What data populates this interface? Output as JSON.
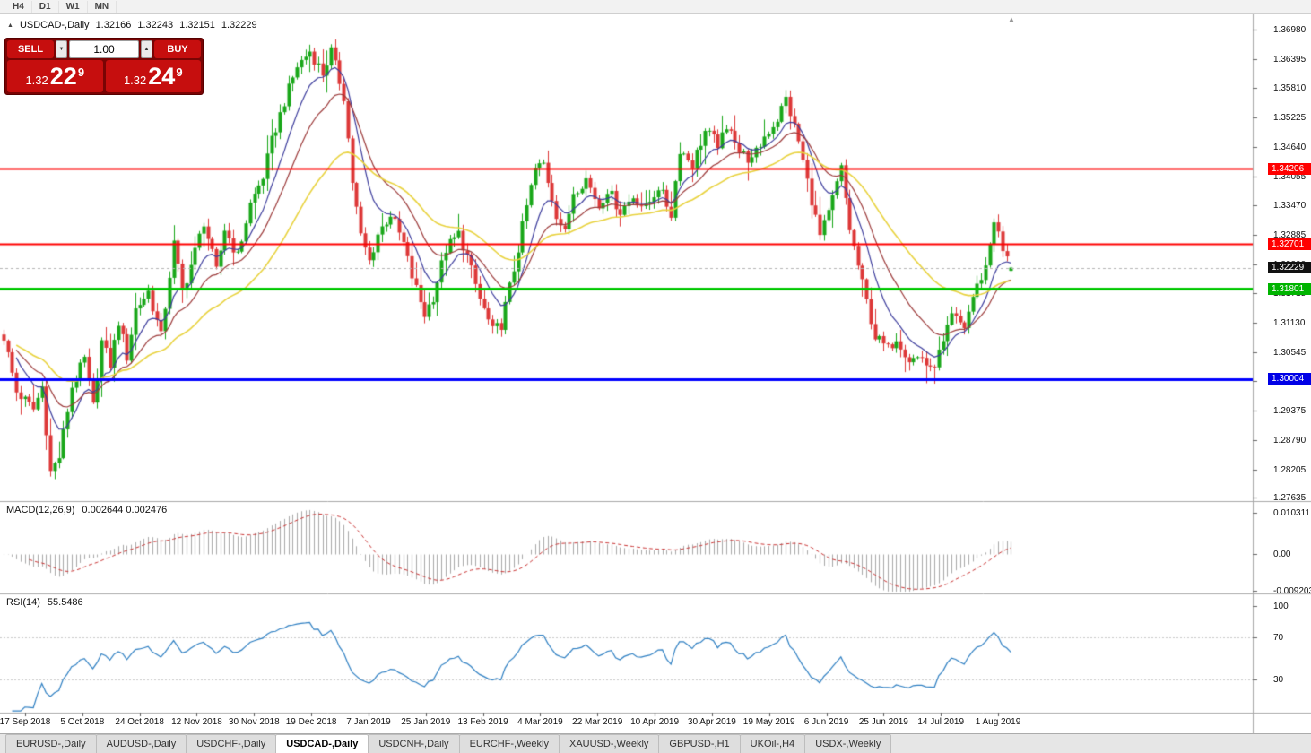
{
  "icons": {
    "triangle_up": "▲",
    "triangle_down": "▼"
  },
  "toolbar": {
    "timeframes": [
      "H4",
      "D1",
      "W1",
      "MN"
    ]
  },
  "chart": {
    "title": "USDCAD-,Daily",
    "open": "1.32166",
    "high": "1.32243",
    "low": "1.32151",
    "close": "1.32229"
  },
  "trade_panel": {
    "sell_label": "SELL",
    "buy_label": "BUY",
    "volume": "1.00",
    "sell_price": {
      "prefix": "1.32",
      "big": "22",
      "sup": "9"
    },
    "buy_price": {
      "prefix": "1.32",
      "big": "24",
      "sup": "9"
    }
  },
  "indicators": {
    "macd": {
      "name_params": "MACD(12,26,9)",
      "values_text": "0.002644 0.002476",
      "axis_labels": [
        "0.010311",
        "0.00",
        "-0.009203"
      ]
    },
    "rsi": {
      "name_params": "RSI(14)",
      "value_text": "55.5486",
      "axis_labels": [
        "100",
        "70",
        "30"
      ],
      "levels": [
        70,
        30
      ]
    }
  },
  "tabs": [
    {
      "label": "EURUSD-,Daily",
      "active": false
    },
    {
      "label": "AUDUSD-,Daily",
      "active": false
    },
    {
      "label": "USDCHF-,Daily",
      "active": false
    },
    {
      "label": "USDCAD-,Daily",
      "active": true
    },
    {
      "label": "USDCNH-,Daily",
      "active": false
    },
    {
      "label": "EURCHF-,Weekly",
      "active": false
    },
    {
      "label": "XAUUSD-,Weekly",
      "active": false
    },
    {
      "label": "GBPUSD-,H1",
      "active": false
    },
    {
      "label": "UKOil-,H4",
      "active": false
    },
    {
      "label": "USDX-,Weekly",
      "active": false
    }
  ],
  "chart_data": {
    "type": "candlestick",
    "symbol": "USDCAD",
    "timeframe": "Daily",
    "last_candle": {
      "open": 1.32166,
      "high": 1.32243,
      "low": 1.32151,
      "close": 1.32229
    },
    "up_color": "#19a719",
    "down_color": "#dd3838",
    "price_axis_ticks": [
      "1.36980",
      "1.36395",
      "1.35810",
      "1.35225",
      "1.34640",
      "1.34055",
      "1.33470",
      "1.32885",
      "1.32300",
      "1.31715",
      "1.31130",
      "1.30545",
      "1.29960",
      "1.29375",
      "1.28790",
      "1.28205",
      "1.27635"
    ],
    "x_axis_dates": [
      "17 Sep 2018",
      "5 Oct 2018",
      "24 Oct 2018",
      "12 Nov 2018",
      "30 Nov 2018",
      "19 Dec 2018",
      "7 Jan 2019",
      "25 Jan 2019",
      "13 Feb 2019",
      "4 Mar 2019",
      "22 Mar 2019",
      "10 Apr 2019",
      "30 Apr 2019",
      "19 May 2019",
      "6 Jun 2019",
      "25 Jun 2019",
      "14 Jul 2019",
      "1 Aug 2019"
    ],
    "horizontal_levels": [
      {
        "price": 1.34206,
        "label": "1.34206",
        "line_color": "#ff0000",
        "badge_color": "#ff0000",
        "width": 2,
        "style": "solid"
      },
      {
        "price": 1.32701,
        "label": "1.32701",
        "line_color": "#ff0000",
        "badge_color": "#ff0000",
        "width": 2,
        "style": "solid"
      },
      {
        "price": 1.32229,
        "label": "1.32229",
        "line_color": "#b4b4b4",
        "badge_color": "#111111",
        "width": 1,
        "style": "dashed"
      },
      {
        "price": 1.31801,
        "label": "1.31801",
        "line_color": "#00c800",
        "badge_color": "#00b400",
        "width": 3,
        "style": "solid"
      },
      {
        "price": 1.30004,
        "label": "1.30004",
        "line_color": "#0000ff",
        "badge_color": "#0000e6",
        "width": 3,
        "style": "solid"
      }
    ],
    "moving_averages": [
      {
        "period": 9,
        "color": "#3c3c9c"
      },
      {
        "period": 18,
        "color": "#9c3a3a"
      },
      {
        "period": 40,
        "color": "#e8d23e"
      }
    ],
    "macd": {
      "fast": 12,
      "slow": 26,
      "signal": 9,
      "current_values": [
        0.002644,
        0.002476
      ],
      "histogram_color": "#a9a9a9",
      "signal_color": "#c83232",
      "axis_range": [
        0.010311,
        -0.009203
      ]
    },
    "rsi": {
      "period": 14,
      "current_value": 55.5486,
      "line_color": "#2e7fc2",
      "axis_range": [
        0,
        100
      ],
      "levels": [
        70,
        30
      ]
    },
    "candle_count": 238,
    "close_path_anchors": [
      [
        0,
        1.3085
      ],
      [
        3,
        1.2975
      ],
      [
        7,
        1.294
      ],
      [
        9,
        1.2985
      ],
      [
        11,
        1.2815
      ],
      [
        13,
        1.2845
      ],
      [
        16,
        1.2985
      ],
      [
        19,
        1.304
      ],
      [
        21,
        1.2945
      ],
      [
        23,
        1.3075
      ],
      [
        25,
        1.303
      ],
      [
        27,
        1.3115
      ],
      [
        29,
        1.3045
      ],
      [
        31,
        1.314
      ],
      [
        34,
        1.3175
      ],
      [
        37,
        1.3085
      ],
      [
        40,
        1.327
      ],
      [
        42,
        1.3175
      ],
      [
        45,
        1.3255
      ],
      [
        47,
        1.3315
      ],
      [
        50,
        1.3215
      ],
      [
        52,
        1.33
      ],
      [
        55,
        1.3245
      ],
      [
        58,
        1.335
      ],
      [
        61,
        1.3405
      ],
      [
        63,
        1.3475
      ],
      [
        66,
        1.3555
      ],
      [
        69,
        1.3625
      ],
      [
        72,
        1.3655
      ],
      [
        75,
        1.361
      ],
      [
        77,
        1.3655
      ],
      [
        80,
        1.3565
      ],
      [
        82,
        1.3395
      ],
      [
        84,
        1.3285
      ],
      [
        86,
        1.3235
      ],
      [
        88,
        1.329
      ],
      [
        91,
        1.333
      ],
      [
        94,
        1.327
      ],
      [
        96,
        1.3205
      ],
      [
        99,
        1.313
      ],
      [
        101,
        1.3165
      ],
      [
        104,
        1.326
      ],
      [
        107,
        1.329
      ],
      [
        109,
        1.3245
      ],
      [
        112,
        1.316
      ],
      [
        115,
        1.3095
      ],
      [
        117,
        1.311
      ],
      [
        120,
        1.322
      ],
      [
        123,
        1.3345
      ],
      [
        125,
        1.342
      ],
      [
        127,
        1.343
      ],
      [
        130,
        1.333
      ],
      [
        132,
        1.329
      ],
      [
        134,
        1.3375
      ],
      [
        137,
        1.34
      ],
      [
        140,
        1.3345
      ],
      [
        142,
        1.338
      ],
      [
        145,
        1.3335
      ],
      [
        148,
        1.3365
      ],
      [
        151,
        1.334
      ],
      [
        154,
        1.3385
      ],
      [
        157,
        1.333
      ],
      [
        159,
        1.346
      ],
      [
        162,
        1.343
      ],
      [
        165,
        1.3495
      ],
      [
        168,
        1.347
      ],
      [
        171,
        1.3505
      ],
      [
        173,
        1.3455
      ],
      [
        176,
        1.3435
      ],
      [
        179,
        1.3485
      ],
      [
        182,
        1.352
      ],
      [
        184,
        1.356
      ],
      [
        187,
        1.3475
      ],
      [
        189,
        1.3395
      ],
      [
        192,
        1.3285
      ],
      [
        194,
        1.333
      ],
      [
        197,
        1.342
      ],
      [
        199,
        1.33
      ],
      [
        202,
        1.319
      ],
      [
        205,
        1.3085
      ],
      [
        208,
        1.306
      ],
      [
        210,
        1.3085
      ],
      [
        213,
        1.304
      ],
      [
        216,
        1.3045
      ],
      [
        218,
        1.3015
      ],
      [
        221,
        1.307
      ],
      [
        223,
        1.3125
      ],
      [
        226,
        1.3105
      ],
      [
        228,
        1.3165
      ],
      [
        231,
        1.3225
      ],
      [
        233,
        1.332
      ],
      [
        235,
        1.3255
      ],
      [
        237,
        1.32229
      ]
    ]
  }
}
